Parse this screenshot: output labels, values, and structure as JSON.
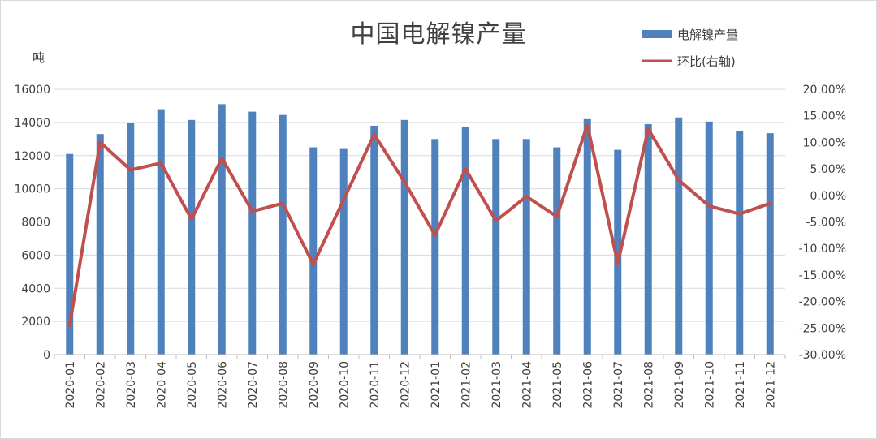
{
  "chart_data": {
    "type": "bar",
    "title": "中国电解镍产量",
    "ylabel": "吨",
    "ylim": [
      0,
      16000
    ],
    "y_ticks": [
      "0",
      "2000",
      "4000",
      "6000",
      "8000",
      "10000",
      "12000",
      "14000",
      "16000"
    ],
    "y2lim": [
      -30,
      20
    ],
    "y2_ticks": [
      "-30.00%",
      "-25.00%",
      "-20.00%",
      "-15.00%",
      "-10.00%",
      "-5.00%",
      "0.00%",
      "5.00%",
      "10.00%",
      "15.00%",
      "20.00%"
    ],
    "categories": [
      "2020-01",
      "2020-02",
      "2020-03",
      "2020-04",
      "2020-05",
      "2020-06",
      "2020-07",
      "2020-08",
      "2020-09",
      "2020-10",
      "2020-11",
      "2020-12",
      "2021-01",
      "2021-02",
      "2021-03",
      "2021-04",
      "2021-05",
      "2021-06",
      "2021-07",
      "2021-08",
      "2021-09",
      "2021-10",
      "2021-11",
      "2021-12"
    ],
    "series": [
      {
        "name": "电解镍产量",
        "type": "bar",
        "axis": "left",
        "color": "#4f81bd",
        "values": [
          12100,
          13300,
          13950,
          14800,
          14150,
          15100,
          14650,
          14450,
          12500,
          12400,
          13800,
          14150,
          13000,
          13700,
          13000,
          13000,
          12500,
          14200,
          12350,
          13900,
          14300,
          14050,
          13500,
          13350
        ]
      },
      {
        "name": "环比(右轴)",
        "type": "line",
        "axis": "right",
        "color": "#c0504d",
        "values": [
          -24.5,
          10.0,
          4.8,
          6.1,
          -4.5,
          7.0,
          -3.0,
          -1.5,
          -13.0,
          -0.8,
          11.5,
          2.5,
          -7.5,
          5.0,
          -4.8,
          -0.2,
          -4.0,
          13.3,
          -12.8,
          12.5,
          2.9,
          -2.0,
          -3.5,
          -1.5
        ]
      }
    ],
    "legend_position": "top-right",
    "grid": true
  }
}
